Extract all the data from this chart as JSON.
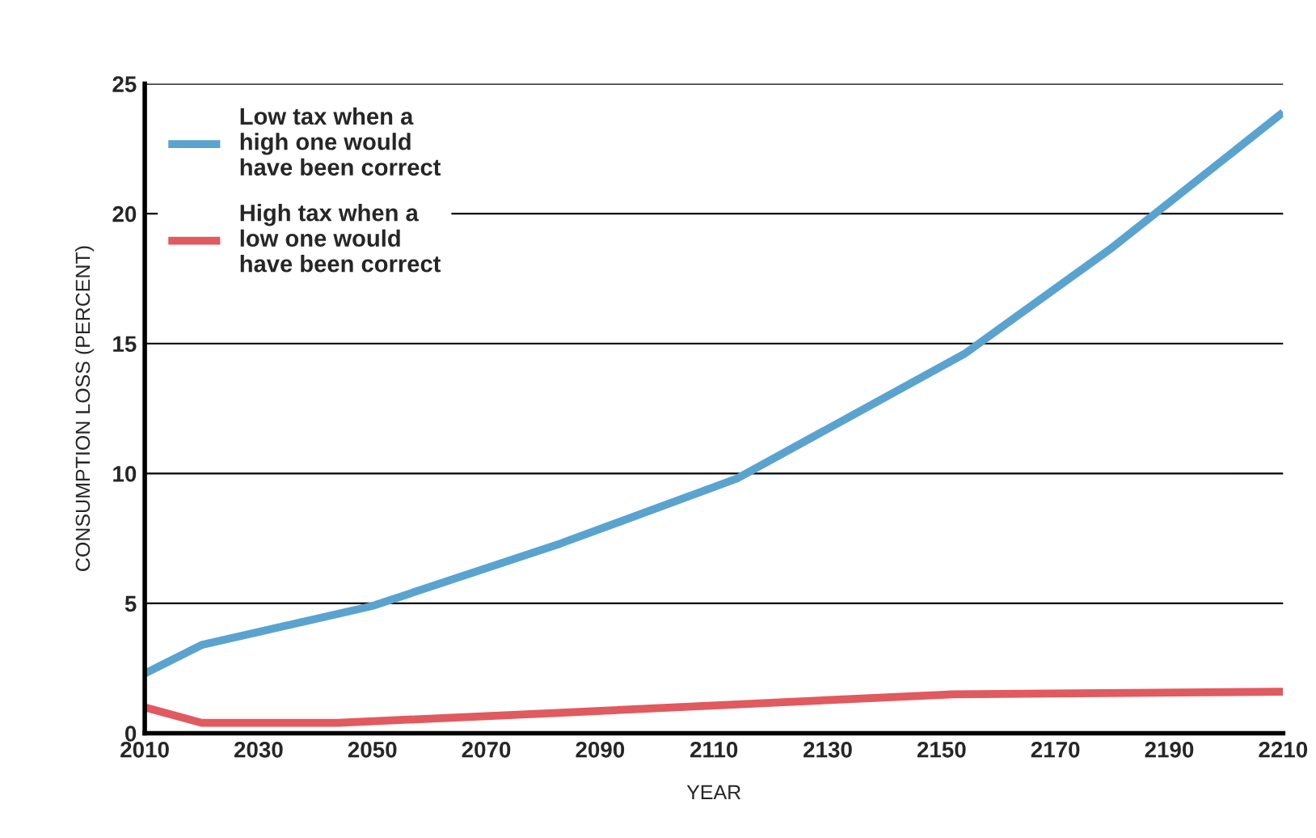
{
  "chart_data": {
    "type": "line",
    "xlabel": "YEAR",
    "ylabel": "CONSUMPTION LOSS (PERCENT)",
    "xlim": [
      2010,
      2210
    ],
    "xticks": [
      2010,
      2030,
      2050,
      2070,
      2090,
      2110,
      2130,
      2150,
      2170,
      2190,
      2210
    ],
    "ylim": [
      0,
      25
    ],
    "yticks": [
      0,
      5,
      10,
      15,
      20,
      25
    ],
    "grid": "y",
    "legend": "top left",
    "series": [
      {
        "name": "Low tax when a\nhigh one would\nhave been correct",
        "color": "#5ba3cf",
        "x": [
          2010,
          2020,
          2050,
          2083,
          2114,
          2154,
          2180,
          2210
        ],
        "values": [
          2.3,
          3.4,
          4.9,
          7.3,
          9.8,
          14.6,
          18.7,
          23.9
        ]
      },
      {
        "name": "High tax when a\nlow one would\nhave been correct",
        "color": "#e05a5f",
        "x": [
          2010,
          2020,
          2044,
          2084,
          2152,
          2210
        ],
        "values": [
          1.0,
          0.4,
          0.4,
          0.8,
          1.5,
          1.6
        ]
      }
    ]
  }
}
